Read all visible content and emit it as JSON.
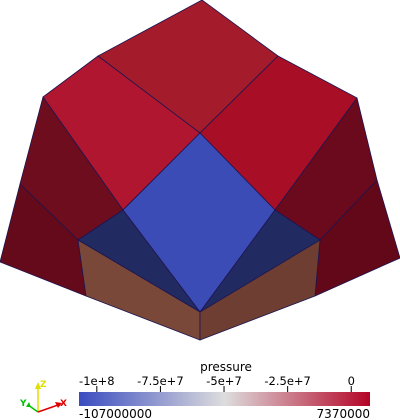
{
  "colorbar": {
    "title": "pressure",
    "ticks": [
      {
        "value": -100000000,
        "label": "-1e+8"
      },
      {
        "value": -75000000,
        "label": "-7.5e+7"
      },
      {
        "value": -50000000,
        "label": "-5e+7"
      },
      {
        "value": -25000000,
        "label": "-2.5e+7"
      },
      {
        "value": 0,
        "label": "0"
      }
    ],
    "range_min": -107000000,
    "range_max": 7370000,
    "min_label": "-107000000",
    "max_label": "7370000",
    "colors": {
      "low": "#3b4cc0",
      "mid": "#dddddd",
      "high": "#b40426"
    }
  },
  "orientation_axes": {
    "z_label": "Z",
    "y_label": "Y",
    "x_label": "X",
    "z_color": "#e0e000",
    "y_color": "#00c000",
    "x_color": "#e00000"
  },
  "scene": {
    "background": "#ffffff",
    "edge_color": "#1e1550"
  }
}
